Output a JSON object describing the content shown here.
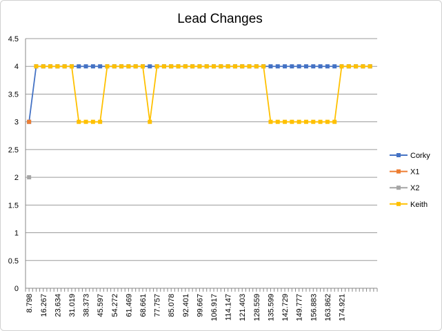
{
  "chart_data": {
    "type": "line",
    "title": "Lead Changes",
    "ylim": [
      0,
      4.5
    ],
    "y_ticks": [
      "0",
      "0.5",
      "1",
      "1.5",
      "2",
      "2.5",
      "3",
      "3.5",
      "4",
      "4.5"
    ],
    "x_tick_labels": [
      "8.798",
      "16.267",
      "23.634",
      "31.019",
      "38.373",
      "45.597",
      "54.272",
      "61.469",
      "68.661",
      "77.757",
      "85.078",
      "92.401",
      "99.667",
      "106.917",
      "114.147",
      "121.403",
      "128.559",
      "135.599",
      "142.729",
      "149.777",
      "156.883",
      "163.862",
      "174.921"
    ],
    "grid": "horizontal",
    "legend_position": "right",
    "series": [
      {
        "name": "Corky",
        "color": "#4472C4",
        "values": [
          3,
          4,
          4,
          4,
          4,
          4,
          4,
          4,
          4,
          4,
          4,
          4,
          4,
          4,
          4,
          4,
          4,
          4,
          4,
          4,
          4,
          4,
          4,
          4,
          4,
          4,
          4,
          4,
          4,
          4,
          4,
          4,
          4,
          4,
          4,
          4,
          4,
          4,
          4,
          4,
          4,
          4,
          4,
          4,
          4,
          4,
          4,
          4,
          4
        ]
      },
      {
        "name": "X1",
        "color": "#ED7D31",
        "values": [
          3
        ]
      },
      {
        "name": "X2",
        "color": "#A5A5A5",
        "values": [
          2
        ]
      },
      {
        "name": "Keith",
        "color": "#FFC000",
        "values": [
          null,
          4,
          4,
          4,
          4,
          4,
          4,
          3,
          3,
          3,
          3,
          4,
          4,
          4,
          4,
          4,
          4,
          3,
          4,
          4,
          4,
          4,
          4,
          4,
          4,
          4,
          4,
          4,
          4,
          4,
          4,
          4,
          4,
          4,
          3,
          3,
          3,
          3,
          3,
          3,
          3,
          3,
          3,
          3,
          4,
          4,
          4,
          4,
          4
        ]
      }
    ]
  }
}
